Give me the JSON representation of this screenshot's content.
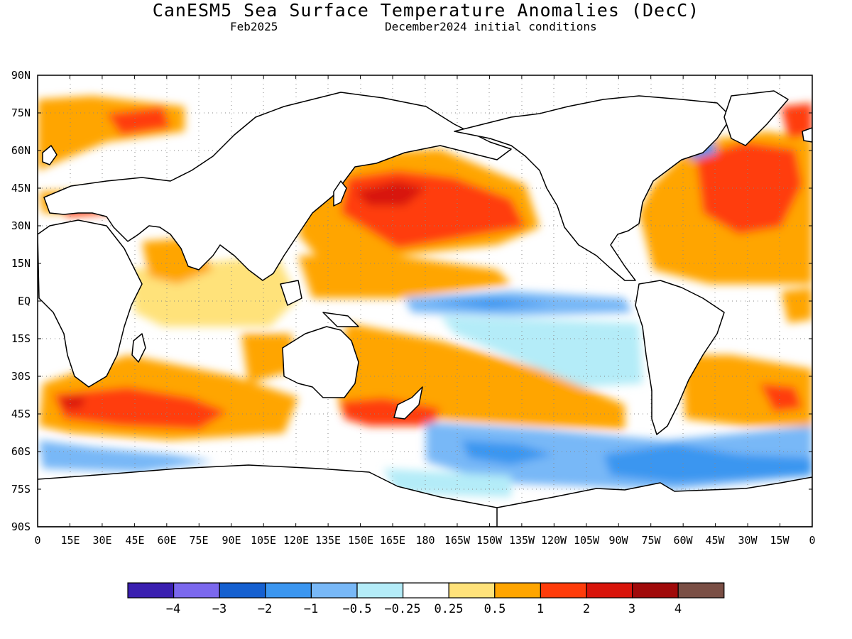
{
  "title": "CanESM5 Sea Surface Temperature Anomalies (DecC)",
  "subtitle_left": "Feb2025",
  "subtitle_right": "December2024 initial conditions",
  "lat_labels": [
    "90N",
    "75N",
    "60N",
    "45N",
    "30N",
    "15N",
    "EQ",
    "15S",
    "30S",
    "45S",
    "60S",
    "75S",
    "90S"
  ],
  "lon_labels": [
    "0",
    "15E",
    "30E",
    "45E",
    "60E",
    "75E",
    "90E",
    "105E",
    "120E",
    "135E",
    "150E",
    "165E",
    "180",
    "165W",
    "150W",
    "135W",
    "120W",
    "105W",
    "90W",
    "75W",
    "60W",
    "45W",
    "30W",
    "15W",
    "0"
  ],
  "colorbar": {
    "colors": [
      "#3a1fb0",
      "#7b68ee",
      "#1560d0",
      "#3b96f0",
      "#78b8f7",
      "#b4ecf8",
      "#ffffff",
      "#ffe27a",
      "#ffa500",
      "#ff3c0a",
      "#d8140a",
      "#a00a0a",
      "#7a4f45"
    ],
    "labels": [
      "−4",
      "−3",
      "−2",
      "−1",
      "−0.5",
      "−0.25",
      "0.25",
      "0.5",
      "1",
      "2",
      "3",
      "4"
    ]
  },
  "chart_data": {
    "type": "heatmap",
    "title": "CanESM5 Sea Surface Temperature Anomalies (DecC)",
    "subtitle": "Feb2025 — December2024 initial conditions",
    "units": "DecC",
    "x_range_lon": [
      0,
      360
    ],
    "y_range_lat": [
      -90,
      90
    ],
    "grid": true,
    "color_levels": [
      -4,
      -3,
      -2,
      -1,
      -0.5,
      -0.25,
      0.25,
      0.5,
      1,
      2,
      3,
      4
    ],
    "anomaly_regions": [
      {
        "lon": [
          150,
          210
        ],
        "lat": [
          30,
          50
        ],
        "value": 2
      },
      {
        "lon": [
          130,
          250
        ],
        "lat": [
          0,
          30
        ],
        "value": 1
      },
      {
        "lon": [
          150,
          270
        ],
        "lat": [
          -5,
          5
        ],
        "value": -1
      },
      {
        "lon": [
          210,
          260
        ],
        "lat": [
          -25,
          -10
        ],
        "value": -1
      },
      {
        "lon": [
          300,
          350
        ],
        "lat": [
          25,
          55
        ],
        "value": 2
      },
      {
        "lon": [
          10,
          100
        ],
        "lat": [
          -50,
          -30
        ],
        "value": 2
      },
      {
        "lon": [
          150,
          200
        ],
        "lat": [
          -50,
          -40
        ],
        "value": 2
      },
      {
        "lon": [
          200,
          330
        ],
        "lat": [
          -70,
          -50
        ],
        "value": -1
      },
      {
        "lon": [
          330,
          360
        ],
        "lat": [
          65,
          80
        ],
        "value": 2
      },
      {
        "lon": [
          0,
          30
        ],
        "lat": [
          65,
          80
        ],
        "value": 1
      }
    ]
  }
}
